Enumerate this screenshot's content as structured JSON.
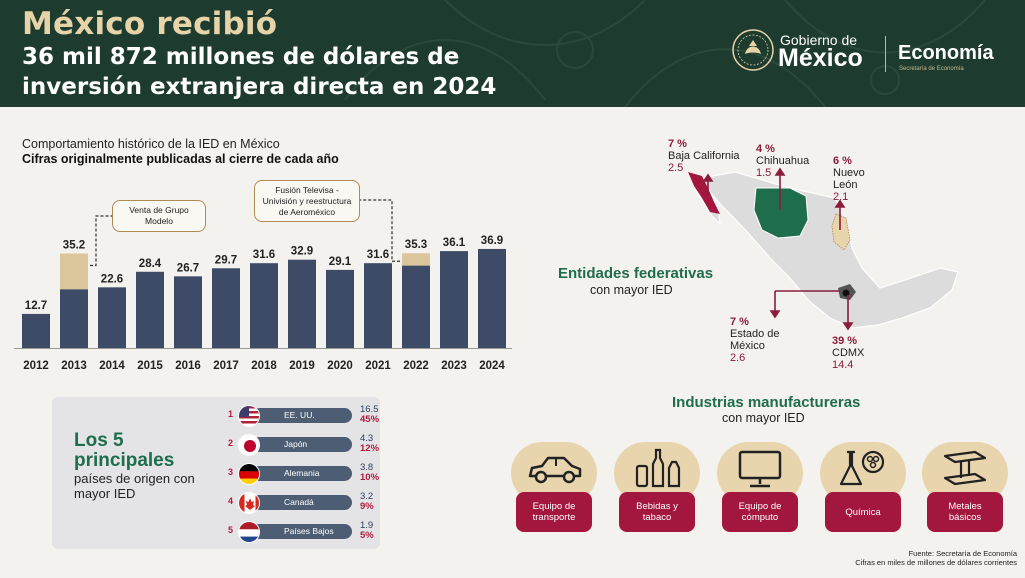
{
  "header": {
    "title_line1": "México recibió",
    "title_line2": "36 mil 872 millones de dólares de inversión extranjera directa en 2024",
    "gov_small": "Gobierno de",
    "gov_big": "México",
    "dept": "Economía",
    "dept_sub": "Secretaría de Economía"
  },
  "chart_data": {
    "type": "bar",
    "title": "Comportamiento histórico de la IED en México",
    "subtitle": "Cifras originalmente publicadas al cierre de cada año",
    "categories": [
      "2012",
      "2013",
      "2014",
      "2015",
      "2016",
      "2017",
      "2018",
      "2019",
      "2020",
      "2021",
      "2022",
      "2023",
      "2024"
    ],
    "values": [
      12.7,
      35.2,
      22.6,
      28.4,
      26.7,
      29.7,
      31.6,
      32.9,
      29.1,
      31.6,
      35.3,
      36.1,
      36.9
    ],
    "highlight_portion": [
      0,
      13.3,
      0,
      0,
      0,
      0,
      0,
      0,
      0,
      0,
      4.6,
      0,
      0
    ],
    "value_labels": [
      "12.7",
      "35.2",
      "22.6",
      "28.4",
      "26.7",
      "29.7",
      "31.6",
      "32.9",
      "29.1",
      "31.6",
      "35.3",
      "36.1",
      "36.9"
    ],
    "ylim": [
      0,
      40
    ],
    "grid": false,
    "colors": {
      "base": "#3d4b66",
      "highlight": "#dbc59a"
    },
    "annotations": [
      {
        "text": "Venta de Grupo Modelo",
        "year": "2013"
      },
      {
        "text": "Fusión Televisa - Univisión y reestructura de Aeroméxico",
        "year": "2022"
      }
    ]
  },
  "countries": {
    "heading": "Los 5 principales",
    "subheading": "países de origen con mayor IED",
    "items": [
      {
        "rank": "1",
        "name": "EE. UU.",
        "value": "16.5",
        "pct": "45%",
        "flag": "usa-flag-icon"
      },
      {
        "rank": "2",
        "name": "Japón",
        "value": "4.3",
        "pct": "12%",
        "flag": "japan-flag-icon"
      },
      {
        "rank": "3",
        "name": "Alemania",
        "value": "3.8",
        "pct": "10%",
        "flag": "germany-flag-icon"
      },
      {
        "rank": "4",
        "name": "Canadá",
        "value": "3.2",
        "pct": "9%",
        "flag": "canada-flag-icon"
      },
      {
        "rank": "5",
        "name": "Países Bajos",
        "value": "1.9",
        "pct": "5%",
        "flag": "netherlands-flag-icon"
      }
    ]
  },
  "states": {
    "title": "Entidades federativas",
    "subtitle": "con mayor IED",
    "items": [
      {
        "pct": "7 %",
        "name": "Baja California",
        "value": "2.5"
      },
      {
        "pct": "4 %",
        "name": "Chihuahua",
        "value": "1.5"
      },
      {
        "pct": "6 %",
        "name": "Nuevo León",
        "value": "2.1"
      },
      {
        "pct": "7 %",
        "name": "Estado de México",
        "value": "2.6"
      },
      {
        "pct": "39 %",
        "name": "CDMX",
        "value": "14.4"
      }
    ],
    "colors": {
      "baja_california": "#a3163e",
      "chihuahua": "#1e6d4c",
      "nuevo_leon": "#e8d5ae",
      "cdmx": "#222222",
      "map": "#dcdcdc"
    }
  },
  "industries": {
    "title": "Industrias manufactureras",
    "subtitle": "con mayor IED",
    "items": [
      {
        "label": "Equipo de transporte",
        "icon": "car-icon"
      },
      {
        "label": "Bebidas y tabaco",
        "icon": "bottles-icon"
      },
      {
        "label": "Equipo de cómputo",
        "icon": "computer-monitor-icon"
      },
      {
        "label": "Química",
        "icon": "flask-icon"
      },
      {
        "label": "Metales básicos",
        "icon": "metal-beam-icon"
      }
    ]
  },
  "footer": {
    "source": "Fuente: Secretaría de Economía",
    "note": "Cifras en miles de millones de dólares corrientes"
  }
}
